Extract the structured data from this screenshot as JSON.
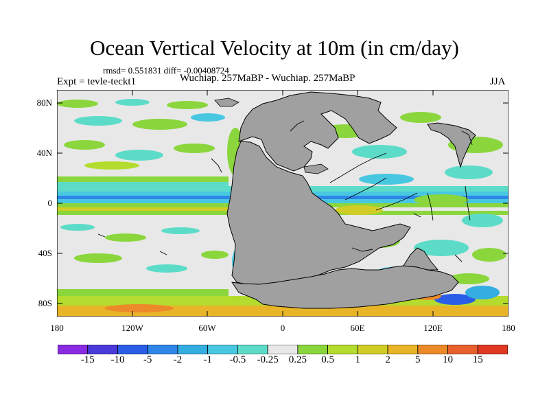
{
  "title": "Ocean Vertical Velocity at 10m (in cm/day)",
  "stats": "rmsd= 0.551831 diff= -0.00408724",
  "expt": "Expt = tevle-teckt1",
  "subtitle": "Wuchiap. 257MaBP - Wuchiap. 257MaBP",
  "season": "JJA",
  "axes": {
    "y_ticks": [
      "80N",
      "40N",
      "0",
      "40S",
      "80S"
    ],
    "x_ticks": [
      "180",
      "120W",
      "60W",
      "0",
      "60E",
      "120E",
      "180"
    ]
  },
  "colorbar": {
    "labels": [
      "-15",
      "-10",
      "-5",
      "-2",
      "-1",
      "-0.5",
      "-0.25",
      "0.25",
      "0.5",
      "1",
      "2",
      "5",
      "10",
      "15"
    ],
    "colors": [
      "#8a2be2",
      "#4a3ad9",
      "#2a5ee6",
      "#2e86e8",
      "#34aee0",
      "#48c8e0",
      "#5cdcc8",
      "#e8e8e8",
      "#8ad63c",
      "#b4dc2e",
      "#d2cc26",
      "#e8b428",
      "#ec8a2a",
      "#e8602c",
      "#e23a22"
    ]
  },
  "colors": {
    "land": "#a0a0a0",
    "ocean_neutral": "#e8e8e8",
    "coast": "#000000"
  }
}
